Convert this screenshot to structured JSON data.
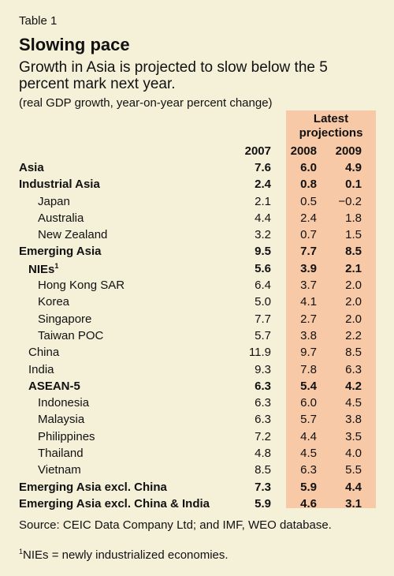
{
  "table_tag": "Table 1",
  "title": "Slowing pace",
  "subtitle": "Growth in Asia is projected to slow below the 5 percent mark next year.",
  "note": "(real GDP growth, year-on-year percent change)",
  "projections_header_line1": "Latest",
  "projections_header_line2": "projections",
  "columns": [
    "2007",
    "2008",
    "2009"
  ],
  "rows": [
    {
      "label": "Asia",
      "indent": 0,
      "bold": true,
      "values": [
        "7.6",
        "6.0",
        "4.9"
      ]
    },
    {
      "label": "Industrial Asia",
      "indent": 0,
      "bold": true,
      "values": [
        "2.4",
        "0.8",
        "0.1"
      ]
    },
    {
      "label": "Japan",
      "indent": 2,
      "bold": false,
      "values": [
        "2.1",
        "0.5",
        "−0.2"
      ]
    },
    {
      "label": "Australia",
      "indent": 2,
      "bold": false,
      "values": [
        "4.4",
        "2.4",
        "1.8"
      ]
    },
    {
      "label": "New Zealand",
      "indent": 2,
      "bold": false,
      "values": [
        "3.2",
        "0.7",
        "1.5"
      ]
    },
    {
      "label": "Emerging Asia",
      "indent": 0,
      "bold": true,
      "values": [
        "9.5",
        "7.7",
        "8.5"
      ]
    },
    {
      "label": "NIEs",
      "sup": "1",
      "indent": 1,
      "bold": true,
      "values": [
        "5.6",
        "3.9",
        "2.1"
      ]
    },
    {
      "label": "Hong Kong SAR",
      "indent": 2,
      "bold": false,
      "values": [
        "6.4",
        "3.7",
        "2.0"
      ]
    },
    {
      "label": "Korea",
      "indent": 2,
      "bold": false,
      "values": [
        "5.0",
        "4.1",
        "2.0"
      ]
    },
    {
      "label": "Singapore",
      "indent": 2,
      "bold": false,
      "values": [
        "7.7",
        "2.7",
        "2.0"
      ]
    },
    {
      "label": "Taiwan POC",
      "indent": 2,
      "bold": false,
      "values": [
        "5.7",
        "3.8",
        "2.2"
      ]
    },
    {
      "label": "China",
      "indent": 1,
      "bold": false,
      "values": [
        "11.9",
        "9.7",
        "8.5"
      ]
    },
    {
      "label": "India",
      "indent": 1,
      "bold": false,
      "values": [
        "9.3",
        "7.8",
        "6.3"
      ]
    },
    {
      "label": "ASEAN-5",
      "indent": 1,
      "bold": true,
      "values": [
        "6.3",
        "5.4",
        "4.2"
      ]
    },
    {
      "label": "Indonesia",
      "indent": 2,
      "bold": false,
      "values": [
        "6.3",
        "6.0",
        "4.5"
      ]
    },
    {
      "label": "Malaysia",
      "indent": 2,
      "bold": false,
      "values": [
        "6.3",
        "5.7",
        "3.8"
      ]
    },
    {
      "label": "Philippines",
      "indent": 2,
      "bold": false,
      "values": [
        "7.2",
        "4.4",
        "3.5"
      ]
    },
    {
      "label": "Thailand",
      "indent": 2,
      "bold": false,
      "values": [
        "4.8",
        "4.5",
        "4.0"
      ]
    },
    {
      "label": "Vietnam",
      "indent": 2,
      "bold": false,
      "values": [
        "8.5",
        "6.3",
        "5.5"
      ]
    },
    {
      "label": "Emerging Asia excl. China",
      "indent": 0,
      "bold": true,
      "values": [
        "7.3",
        "5.9",
        "4.4"
      ]
    },
    {
      "label": "Emerging Asia excl. China & India",
      "indent": 0,
      "bold": true,
      "values": [
        "5.9",
        "4.6",
        "3.1"
      ]
    }
  ],
  "source": "Source: CEIC Data Company Ltd; and IMF, WEO database.",
  "footnote_mark": "1",
  "footnote": "NIEs = newly industrialized economies.",
  "colors": {
    "background": "#f5f1d9",
    "projection_band": "#f7c9a6"
  }
}
